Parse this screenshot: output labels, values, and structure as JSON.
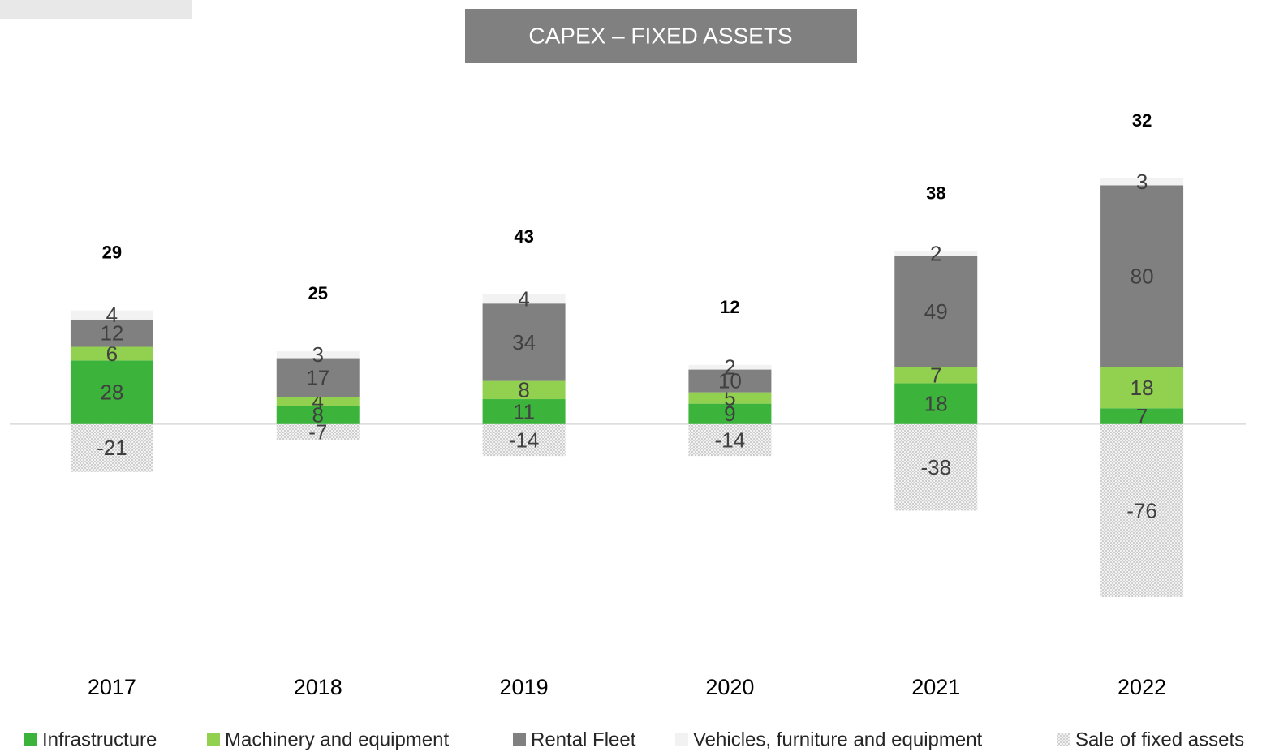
{
  "chart_data": {
    "type": "stacked_bar",
    "title": "CAPEX – FIXED ASSETS",
    "categories": [
      "2017",
      "2018",
      "2019",
      "2020",
      "2021",
      "2022"
    ],
    "series": [
      {
        "name": "Infrastructure",
        "color": "#3cb43c",
        "values": [
          28,
          8,
          11,
          9,
          18,
          7
        ]
      },
      {
        "name": "Machinery and equipment",
        "color": "#92d050",
        "values": [
          6,
          4,
          8,
          5,
          7,
          18
        ]
      },
      {
        "name": "Rental Fleet",
        "color": "#808080",
        "values": [
          12,
          17,
          34,
          10,
          49,
          80
        ]
      },
      {
        "name": "Vehicles, furniture and equipment",
        "color": "#f2f2f2",
        "values": [
          4,
          3,
          4,
          2,
          2,
          3
        ]
      },
      {
        "name": "Sale of fixed assets",
        "color": "#d9d9d9",
        "values": [
          -21,
          -7,
          -14,
          -14,
          -38,
          -76
        ]
      }
    ],
    "totals": [
      29,
      25,
      43,
      12,
      38,
      32
    ]
  }
}
